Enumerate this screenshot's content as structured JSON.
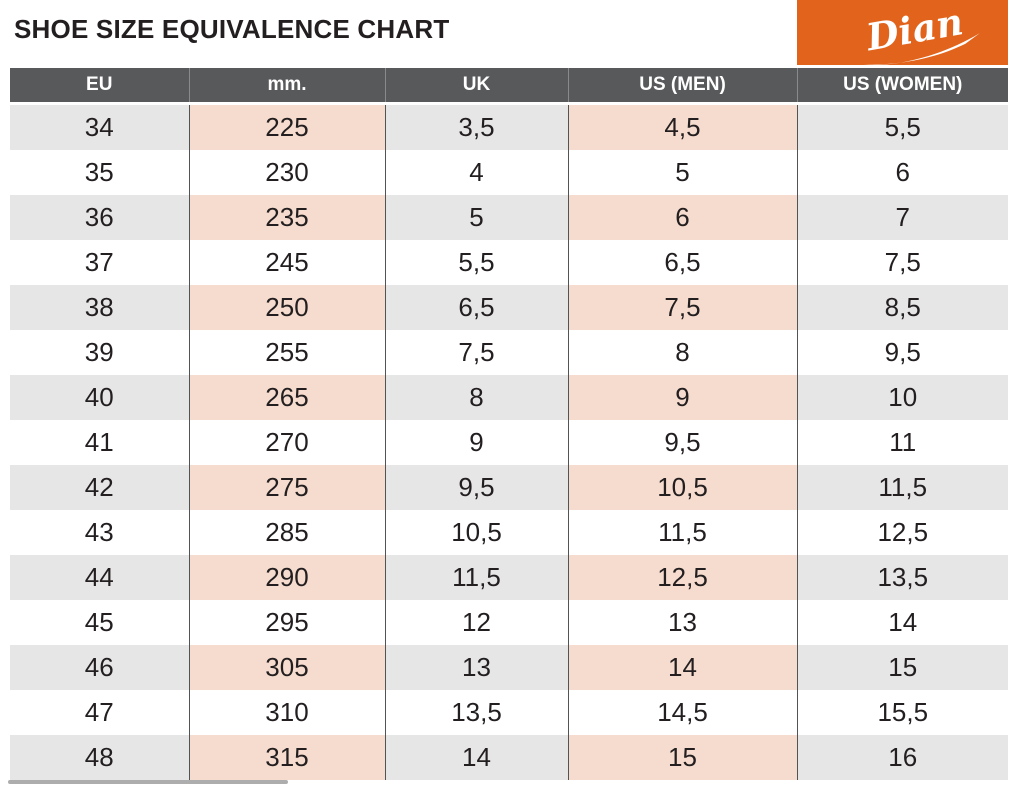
{
  "title": "SHOE SIZE EQUIVALENCE CHART",
  "logo": {
    "brand": "Dian",
    "bg_color": "#E2641C",
    "text_color": "#FFFFFF"
  },
  "colors": {
    "header_bg": "#58595B",
    "header_text": "#FFFFFF",
    "row_shade_gray": "#E7E6E6",
    "row_shade_pink": "#F6DCCE",
    "column_divider": "#525356"
  },
  "chart_data": {
    "type": "table",
    "title": "SHOE SIZE EQUIVALENCE CHART",
    "columns": [
      "EU",
      "mm.",
      "UK",
      "US (MEN)",
      "US (WOMEN)"
    ],
    "rows": [
      [
        "34",
        "225",
        "3,5",
        "4,5",
        "5,5"
      ],
      [
        "35",
        "230",
        "4",
        "5",
        "6"
      ],
      [
        "36",
        "235",
        "5",
        "6",
        "7"
      ],
      [
        "37",
        "245",
        "5,5",
        "6,5",
        "7,5"
      ],
      [
        "38",
        "250",
        "6,5",
        "7,5",
        "8,5"
      ],
      [
        "39",
        "255",
        "7,5",
        "8",
        "9,5"
      ],
      [
        "40",
        "265",
        "8",
        "9",
        "10"
      ],
      [
        "41",
        "270",
        "9",
        "9,5",
        "11"
      ],
      [
        "42",
        "275",
        "9,5",
        "10,5",
        "11,5"
      ],
      [
        "43",
        "285",
        "10,5",
        "11,5",
        "12,5"
      ],
      [
        "44",
        "290",
        "11,5",
        "12,5",
        "13,5"
      ],
      [
        "45",
        "295",
        "12",
        "13",
        "14"
      ],
      [
        "46",
        "305",
        "13",
        "14",
        "15"
      ],
      [
        "47",
        "310",
        "13,5",
        "14,5",
        "15,5"
      ],
      [
        "48",
        "315",
        "14",
        "15",
        "16"
      ]
    ],
    "layout_hints": {
      "shaded_row_pattern": "alternating starting with first row",
      "pink_column_indexes": [
        1,
        3
      ],
      "gray_column_indexes": [
        0,
        2,
        4
      ]
    }
  }
}
